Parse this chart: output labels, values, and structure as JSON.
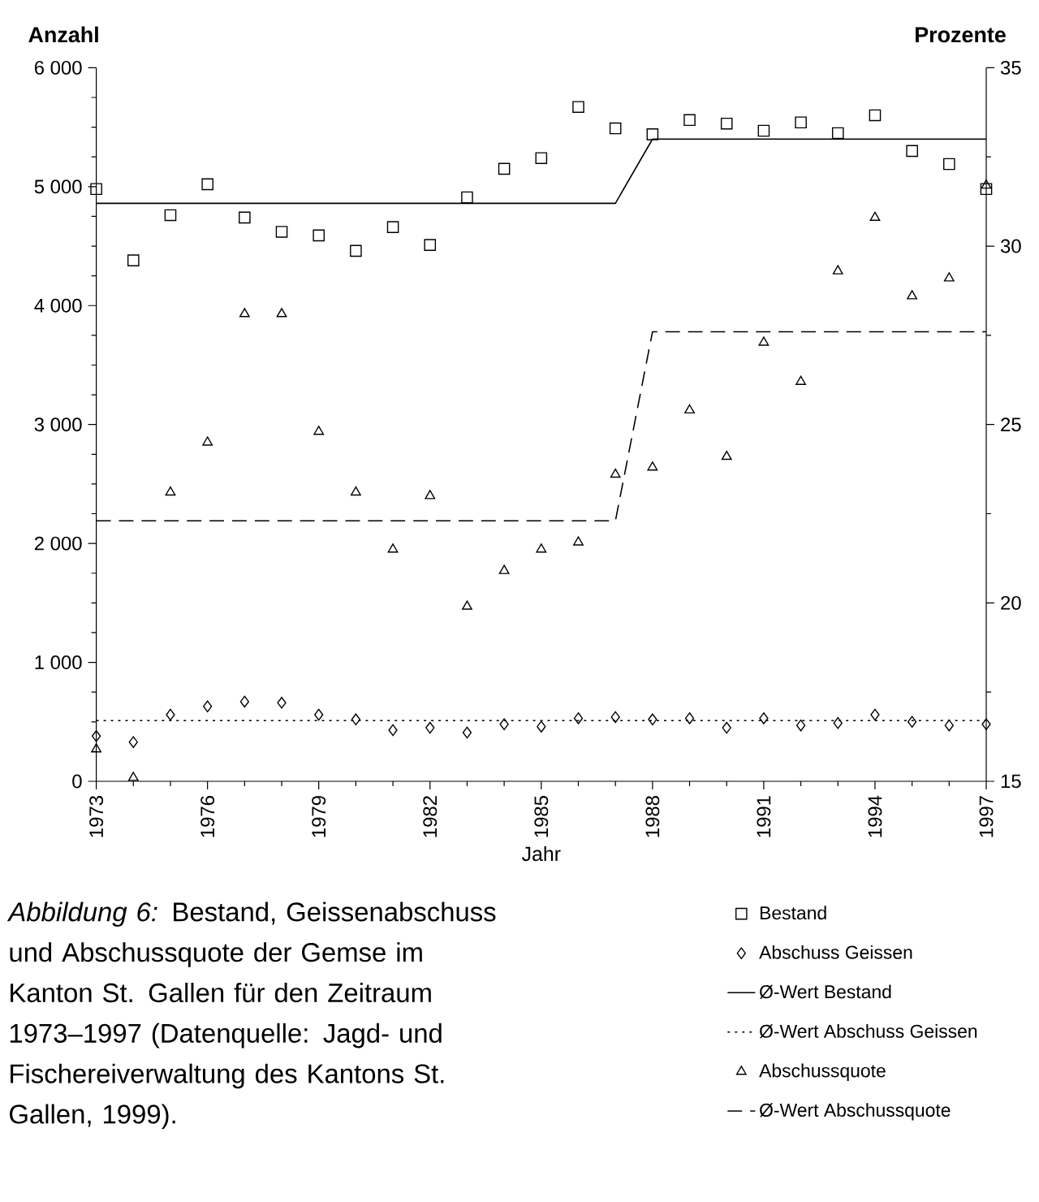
{
  "chart_data": {
    "type": "scatter",
    "xlabel": "Jahr",
    "ylabel": "Anzahl",
    "y2label": "Prozente",
    "x": [
      1973,
      1974,
      1975,
      1976,
      1977,
      1978,
      1979,
      1980,
      1981,
      1982,
      1983,
      1984,
      1985,
      1986,
      1987,
      1988,
      1989,
      1990,
      1991,
      1992,
      1993,
      1994,
      1995,
      1996,
      1997
    ],
    "xlim": [
      1973,
      1997
    ],
    "xticks": [
      1973,
      1976,
      1979,
      1982,
      1985,
      1988,
      1991,
      1994,
      1997
    ],
    "ylim": [
      0,
      6000
    ],
    "yticks": [
      0,
      {
        "value": 1000,
        "label": "1 000"
      },
      {
        "value": 2000,
        "label": "2 000"
      },
      {
        "value": 3000,
        "label": "3 000"
      },
      {
        "value": 4000,
        "label": "4 000"
      },
      {
        "value": 5000,
        "label": "5 000"
      },
      {
        "value": 6000,
        "label": "6 000"
      }
    ],
    "y2lim": [
      15,
      35
    ],
    "y2ticks": [
      15,
      20,
      25,
      30,
      35
    ],
    "legend": "bottom right",
    "series": [
      {
        "name": "Bestand",
        "marker": "square",
        "color": "#000000",
        "axis": "y",
        "values": [
          4980,
          4380,
          4760,
          5020,
          4740,
          4620,
          4590,
          4460,
          4660,
          4510,
          4910,
          5150,
          5240,
          5670,
          5490,
          5440,
          5560,
          5530,
          5470,
          5540,
          5450,
          5600,
          5300,
          5190,
          4980
        ]
      },
      {
        "name": "Abschuss Geissen",
        "marker": "diamond",
        "color": "#000000",
        "axis": "y",
        "values": [
          380,
          330,
          560,
          630,
          670,
          660,
          560,
          520,
          430,
          450,
          410,
          480,
          460,
          530,
          540,
          520,
          530,
          450,
          530,
          470,
          490,
          560,
          500,
          470,
          480
        ]
      },
      {
        "name": "Ø-Wert Bestand",
        "type": "line",
        "line_style": "solid",
        "color": "#000000",
        "axis": "y",
        "x": [
          1973,
          1987,
          1988,
          1997
        ],
        "values": [
          4860,
          4860,
          5400,
          5400
        ]
      },
      {
        "name": "Ø-Wert Abschuss Geissen",
        "type": "line",
        "line_style": "dotted",
        "color": "#000000",
        "axis": "y",
        "x": [
          1973,
          1997
        ],
        "values": [
          510,
          510
        ]
      },
      {
        "name": "Abschussquote",
        "marker": "triangle",
        "color": "#000000",
        "axis": "y2",
        "values": [
          15.9,
          15.1,
          23.1,
          24.5,
          28.1,
          28.1,
          24.8,
          23.1,
          21.5,
          23.0,
          19.9,
          20.9,
          21.5,
          21.7,
          23.6,
          23.8,
          25.4,
          24.1,
          27.3,
          26.2,
          29.3,
          30.8,
          28.6,
          29.1,
          31.7
        ]
      },
      {
        "name": "Ø-Wert Abschussquote",
        "type": "line",
        "line_style": "dashed",
        "color": "#000000",
        "axis": "y2",
        "x": [
          1973,
          1987,
          1988,
          1997
        ],
        "values": [
          22.3,
          22.3,
          27.6,
          27.6
        ]
      }
    ],
    "annotations": [
      "*Abbildung 6:* Bestand, Geissenabschuss und Abschussquote der Gemse im Kanton St. Gallen für den Zeitraum 1973–1997 (Datenquelle: Jagd- und Fischereiverwaltung des Kantons St. Gallen, 1999)."
    ]
  }
}
